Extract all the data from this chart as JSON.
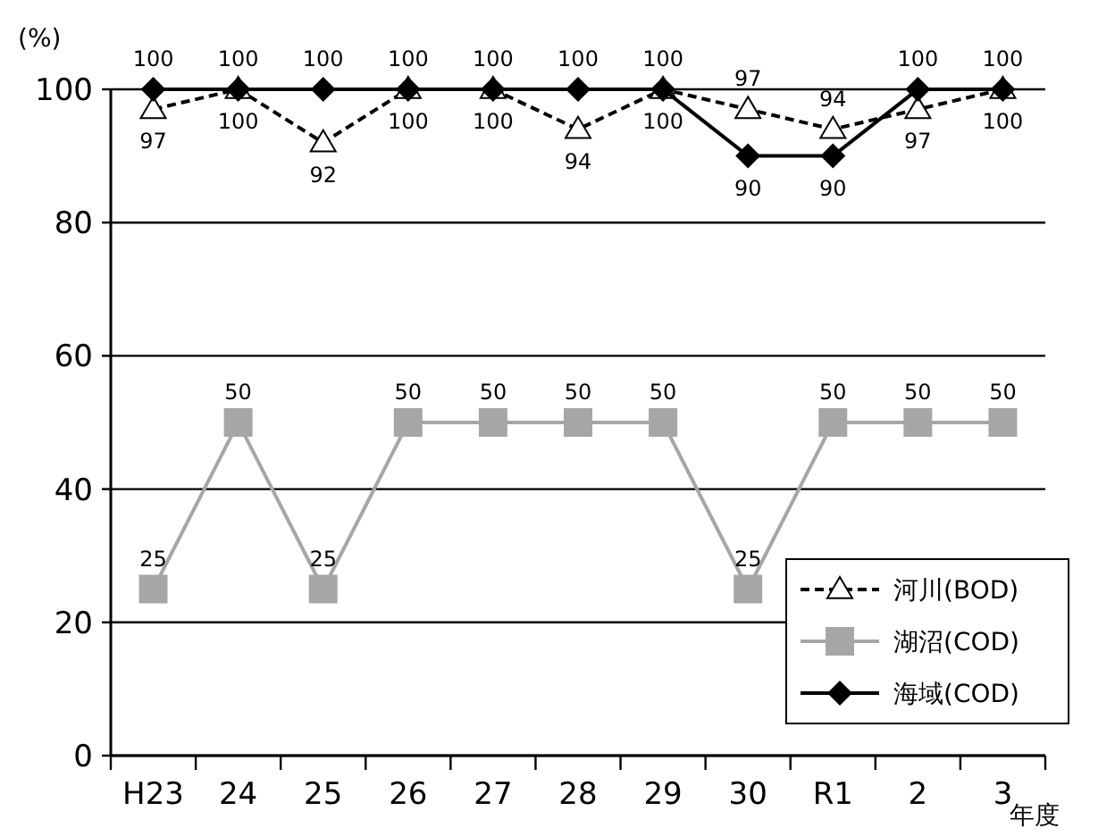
{
  "chart_data": {
    "type": "line",
    "ylabel": "(%)",
    "xlabel": "年度",
    "categories": [
      "H23",
      "24",
      "25",
      "26",
      "27",
      "28",
      "29",
      "30",
      "R1",
      "2",
      "3"
    ],
    "series": [
      {
        "name": "河川(BOD)",
        "color": "#000000",
        "marker": "triangle",
        "line_style": "dashed",
        "values": [
          97,
          100,
          92,
          100,
          100,
          94,
          100,
          97,
          94,
          97,
          100
        ]
      },
      {
        "name": "湖沼(COD)",
        "color": "#a6a6a6",
        "marker": "square",
        "line_style": "solid",
        "values": [
          25,
          50,
          25,
          50,
          50,
          50,
          50,
          25,
          50,
          50,
          50
        ]
      },
      {
        "name": "海域(COD)",
        "color": "#000000",
        "marker": "diamond",
        "line_style": "solid",
        "values": [
          100,
          100,
          100,
          100,
          100,
          100,
          100,
          90,
          90,
          100,
          100
        ]
      }
    ],
    "ylim": [
      0,
      100
    ],
    "yticks": [
      0,
      20,
      40,
      60,
      80,
      100
    ],
    "grid": "y",
    "legend": "bottom right",
    "data_labels": true
  }
}
